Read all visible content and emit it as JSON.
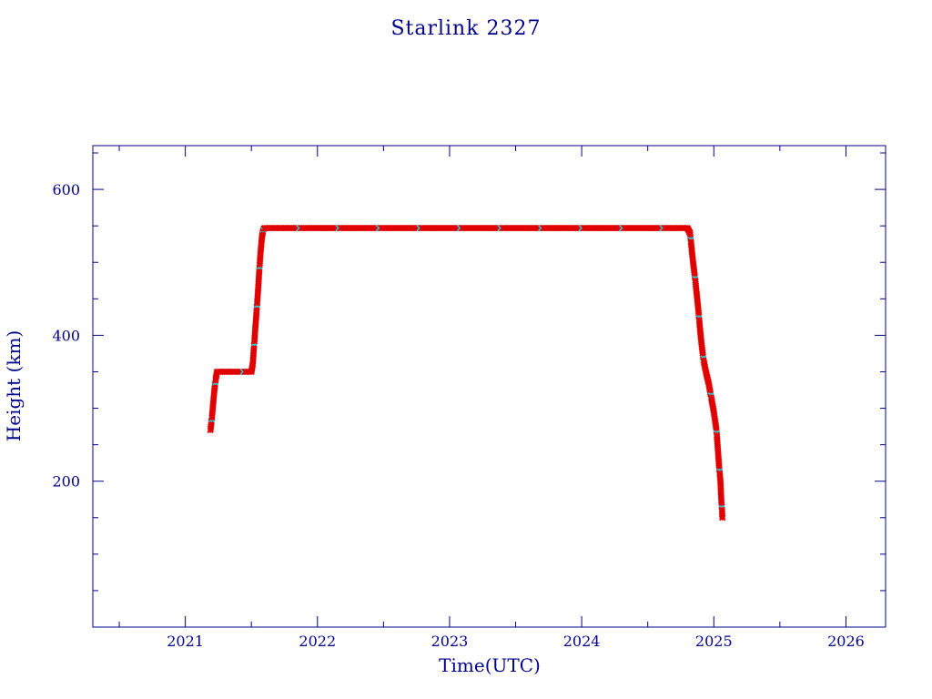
{
  "chart_data": {
    "type": "scatter",
    "title": "Starlink 2327",
    "xlabel": "Time(UTC)",
    "ylabel": "Height (km)",
    "xlim": [
      2020.3,
      2026.3
    ],
    "ylim": [
      0,
      660
    ],
    "x_ticks": [
      2021,
      2022,
      2023,
      2024,
      2025,
      2026
    ],
    "x_tick_labels": [
      "2021",
      "2022",
      "2023",
      "2024",
      "2025",
      "2026"
    ],
    "y_ticks": [
      200,
      400,
      600
    ],
    "y_tick_labels": [
      "200",
      "400",
      "600"
    ],
    "grid": false,
    "colors": {
      "frame": "#00008b",
      "series_main": "#e00000",
      "series_alt": "#22d8e8",
      "line": "#000000"
    },
    "series": [
      {
        "x": [
          2021.19,
          2021.2,
          2021.21,
          2021.22,
          2021.23,
          2021.24,
          2021.25,
          2021.3,
          2021.35,
          2021.4,
          2021.45,
          2021.5,
          2021.51,
          2021.52,
          2021.53,
          2021.54,
          2021.55,
          2021.56,
          2021.57,
          2021.58,
          2021.59,
          2021.6,
          2021.65,
          2021.7,
          2021.8,
          2021.9,
          2022.0,
          2022.2,
          2022.4,
          2022.6,
          2022.8,
          2023.0,
          2023.2,
          2023.4,
          2023.6,
          2023.8,
          2024.0,
          2024.2,
          2024.4,
          2024.6,
          2024.7,
          2024.8,
          2024.82,
          2024.84,
          2024.86,
          2024.88,
          2024.9,
          2024.92,
          2024.94,
          2024.96,
          2024.98,
          2025.0,
          2025.02,
          2025.03,
          2025.04,
          2025.05,
          2025.055,
          2025.06,
          2025.065
        ],
        "y": [
          270,
          285,
          305,
          325,
          340,
          350,
          350,
          350,
          350,
          350,
          350,
          350,
          360,
          385,
          410,
          435,
          460,
          490,
          515,
          535,
          545,
          547,
          547,
          547,
          547,
          547,
          547,
          547,
          547,
          547,
          547,
          547,
          547,
          547,
          547,
          547,
          547,
          547,
          547,
          547,
          547,
          547,
          540,
          505,
          475,
          440,
          400,
          368,
          350,
          335,
          315,
          295,
          270,
          245,
          220,
          200,
          180,
          165,
          150
        ]
      }
    ]
  }
}
